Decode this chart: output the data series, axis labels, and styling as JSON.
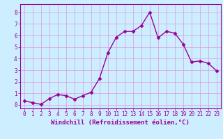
{
  "x": [
    0,
    1,
    2,
    3,
    4,
    5,
    6,
    7,
    8,
    9,
    10,
    11,
    12,
    13,
    14,
    15,
    16,
    17,
    18,
    19,
    20,
    21,
    22,
    23
  ],
  "y": [
    0.35,
    0.2,
    0.05,
    0.55,
    0.9,
    0.8,
    0.5,
    0.8,
    1.1,
    2.3,
    4.5,
    5.85,
    6.35,
    6.35,
    6.85,
    8.0,
    5.8,
    6.35,
    6.2,
    5.25,
    3.7,
    3.8,
    3.6,
    2.95
  ],
  "line_color": "#990099",
  "marker": "D",
  "markersize": 2.5,
  "linewidth": 1.0,
  "bg_color": "#cceeff",
  "grid_color": "#dd99dd",
  "xlabel": "Windchill (Refroidissement éolien,°C)",
  "xlim": [
    -0.5,
    23.5
  ],
  "ylim": [
    -0.3,
    8.7
  ],
  "xticks": [
    0,
    1,
    2,
    3,
    4,
    5,
    6,
    7,
    8,
    9,
    10,
    11,
    12,
    13,
    14,
    15,
    16,
    17,
    18,
    19,
    20,
    21,
    22,
    23
  ],
  "yticks": [
    0,
    1,
    2,
    3,
    4,
    5,
    6,
    7,
    8
  ],
  "xlabel_fontsize": 6.5,
  "tick_fontsize": 5.5,
  "font_color": "#990099",
  "tick_color": "#990099",
  "spine_color": "#990099"
}
